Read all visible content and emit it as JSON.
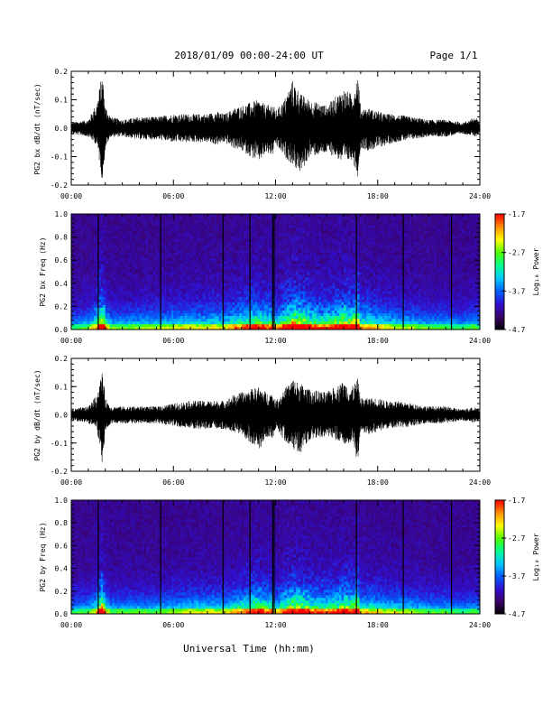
{
  "header": {
    "title": "2018/01/09  00:00-24:00 UT",
    "page": "Page 1/1"
  },
  "xlabel": "Universal Time (hh:mm)",
  "x_ticks": [
    "00:00",
    "06:00",
    "12:00",
    "18:00",
    "24:00"
  ],
  "colorbar": {
    "label": "Log₁₀ Power",
    "ticks": [
      "-1.7",
      "-2.7",
      "-3.7",
      "-4.7"
    ],
    "range": [
      -4.7,
      -1.7
    ],
    "colors": [
      "#000000",
      "#3a0068",
      "#3010d0",
      "#0060ff",
      "#00c8ff",
      "#00ff90",
      "#50ff00",
      "#ffff00",
      "#ff9000",
      "#ff0000"
    ]
  },
  "chart_data": [
    {
      "type": "line",
      "title": "",
      "ylabel": "PG2 bx dB/dt (nT/sec)",
      "xlabel": "",
      "xlim": [
        "00:00",
        "24:00"
      ],
      "ylim": [
        -0.2,
        0.2
      ],
      "y_ticks": [
        "0.2",
        "0.1",
        "0.0",
        "-0.1",
        "-0.2"
      ],
      "envelope": {
        "x": [
          "00:00",
          "01:00",
          "01:30",
          "01:50",
          "02:00",
          "02:20",
          "03:00",
          "04:00",
          "05:00",
          "06:00",
          "07:00",
          "08:00",
          "08:30",
          "09:00",
          "09:30",
          "10:00",
          "10:30",
          "11:00",
          "11:30",
          "11:50",
          "12:00",
          "12:30",
          "13:00",
          "13:30",
          "14:00",
          "15:00",
          "15:30",
          "16:00",
          "16:30",
          "16:50",
          "17:00",
          "17:30",
          "18:00",
          "18:30",
          "19:00",
          "20:00",
          "21:00",
          "22:00",
          "23:00",
          "23:45",
          "24:00"
        ],
        "max": [
          0.02,
          0.03,
          0.09,
          0.2,
          0.08,
          0.04,
          0.03,
          0.04,
          0.04,
          0.05,
          0.05,
          0.05,
          0.06,
          0.05,
          0.07,
          0.08,
          0.09,
          0.1,
          0.08,
          0.09,
          0.06,
          0.1,
          0.17,
          0.12,
          0.1,
          0.08,
          0.11,
          0.14,
          0.12,
          0.2,
          0.07,
          0.07,
          0.06,
          0.05,
          0.05,
          0.04,
          0.03,
          0.03,
          0.02,
          0.04,
          0.02
        ],
        "min": [
          -0.02,
          -0.03,
          -0.06,
          -0.19,
          -0.07,
          -0.03,
          -0.03,
          -0.04,
          -0.04,
          -0.05,
          -0.05,
          -0.05,
          -0.06,
          -0.05,
          -0.07,
          -0.08,
          -0.1,
          -0.12,
          -0.09,
          -0.1,
          -0.06,
          -0.1,
          -0.13,
          -0.16,
          -0.1,
          -0.09,
          -0.1,
          -0.13,
          -0.11,
          -0.17,
          -0.07,
          -0.08,
          -0.07,
          -0.06,
          -0.05,
          -0.04,
          -0.03,
          -0.03,
          -0.02,
          -0.03,
          -0.02
        ]
      }
    },
    {
      "type": "heatmap",
      "title": "",
      "ylabel": "PG2 bx Freq (Hz)",
      "xlabel": "",
      "xlim": [
        "00:00",
        "24:00"
      ],
      "ylim": [
        0.0,
        1.0
      ],
      "y_ticks": [
        "1.0",
        "0.8",
        "0.6",
        "0.4",
        "0.2",
        "0.0"
      ],
      "value_range": [
        -4.7,
        -1.7
      ],
      "vertical_gaps_at": [
        "01:35",
        "05:15",
        "08:55",
        "10:30",
        "11:50",
        "11:55",
        "16:45",
        "19:30",
        "22:20"
      ]
    },
    {
      "type": "line",
      "title": "",
      "ylabel": "PG2 by dB/dt (nT/sec)",
      "xlabel": "",
      "xlim": [
        "00:00",
        "24:00"
      ],
      "ylim": [
        -0.2,
        0.2
      ],
      "y_ticks": [
        "0.2",
        "0.1",
        "0.0",
        "-0.1",
        "-0.2"
      ],
      "envelope": {
        "x": [
          "00:00",
          "01:00",
          "01:30",
          "01:50",
          "02:00",
          "02:20",
          "03:00",
          "04:00",
          "05:00",
          "06:00",
          "07:00",
          "08:00",
          "08:30",
          "09:00",
          "09:30",
          "10:00",
          "10:30",
          "11:00",
          "11:30",
          "11:50",
          "12:00",
          "12:30",
          "13:00",
          "13:30",
          "14:00",
          "15:00",
          "15:30",
          "16:00",
          "16:30",
          "16:50",
          "17:00",
          "17:30",
          "18:00",
          "18:30",
          "19:00",
          "20:00",
          "21:00",
          "22:00",
          "23:00",
          "23:45",
          "24:00"
        ],
        "max": [
          0.02,
          0.03,
          0.07,
          0.16,
          0.06,
          0.03,
          0.03,
          0.03,
          0.03,
          0.04,
          0.05,
          0.05,
          0.05,
          0.05,
          0.07,
          0.08,
          0.09,
          0.1,
          0.08,
          0.08,
          0.05,
          0.09,
          0.13,
          0.11,
          0.09,
          0.08,
          0.1,
          0.12,
          0.1,
          0.13,
          0.06,
          0.06,
          0.06,
          0.05,
          0.05,
          0.04,
          0.03,
          0.03,
          0.02,
          0.03,
          0.02
        ],
        "min": [
          -0.02,
          -0.03,
          -0.05,
          -0.18,
          -0.06,
          -0.03,
          -0.03,
          -0.03,
          -0.03,
          -0.04,
          -0.05,
          -0.05,
          -0.05,
          -0.05,
          -0.06,
          -0.07,
          -0.1,
          -0.13,
          -0.08,
          -0.09,
          -0.05,
          -0.09,
          -0.12,
          -0.14,
          -0.09,
          -0.08,
          -0.09,
          -0.11,
          -0.1,
          -0.17,
          -0.06,
          -0.07,
          -0.06,
          -0.05,
          -0.05,
          -0.04,
          -0.03,
          -0.03,
          -0.02,
          -0.03,
          -0.02
        ]
      }
    },
    {
      "type": "heatmap",
      "title": "",
      "ylabel": "PG2 by Freq (Hz)",
      "xlabel": "",
      "xlim": [
        "00:00",
        "24:00"
      ],
      "ylim": [
        0.0,
        1.0
      ],
      "y_ticks": [
        "1.0",
        "0.8",
        "0.6",
        "0.4",
        "0.2",
        "0.0"
      ],
      "value_range": [
        -4.7,
        -1.7
      ],
      "vertical_gaps_at": [
        "01:35",
        "05:15",
        "08:55",
        "10:30",
        "11:50",
        "11:55",
        "16:45",
        "19:30",
        "22:20"
      ]
    }
  ]
}
